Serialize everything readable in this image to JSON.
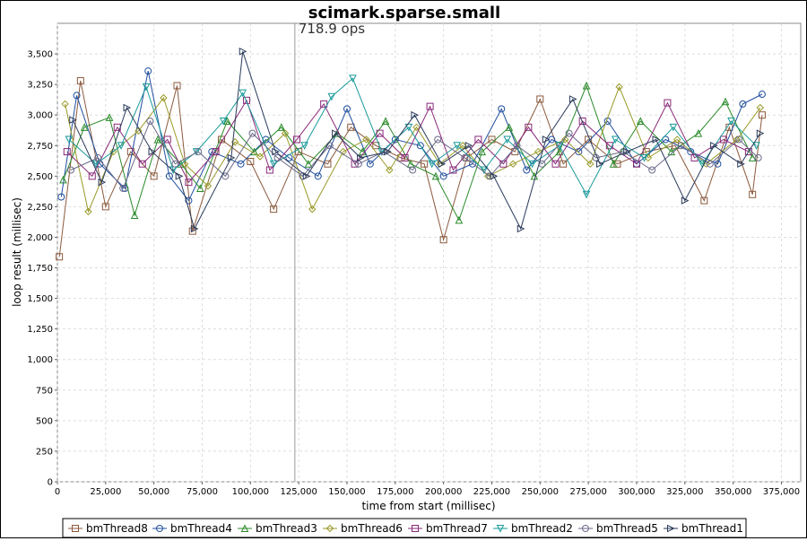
{
  "chart_data": {
    "type": "line",
    "title": "scimark.sparse.small",
    "annotation": "718.9 ops",
    "xlabel": "time from start (millisec)",
    "ylabel": "loop result (millisec)",
    "xlim": [
      0,
      385000
    ],
    "ylim": [
      0,
      3750
    ],
    "xticks": [
      0,
      25000,
      50000,
      75000,
      100000,
      125000,
      150000,
      175000,
      200000,
      225000,
      250000,
      275000,
      300000,
      325000,
      350000,
      375000
    ],
    "xtick_labels": [
      "0",
      "25,000",
      "50,000",
      "75,000",
      "100,000",
      "125,000",
      "150,000",
      "175,000",
      "200,000",
      "225,000",
      "250,000",
      "275,000",
      "300,000",
      "325,000",
      "350,000",
      "375,000"
    ],
    "yticks": [
      0,
      250,
      500,
      750,
      1000,
      1250,
      1500,
      1750,
      2000,
      2250,
      2500,
      2750,
      3000,
      3250,
      3500
    ],
    "ytick_labels": [
      "0",
      "250",
      "500",
      "750",
      "1,000",
      "1,250",
      "1,500",
      "1,750",
      "2,000",
      "2,250",
      "2,500",
      "2,750",
      "3,000",
      "3,250",
      "3,500"
    ],
    "marker_line_x": 123000,
    "grid": true,
    "legend_position": "bottom",
    "series": [
      {
        "name": "bmThread8",
        "color": "#8b5a3c",
        "marker": "square",
        "x": [
          1000,
          12000,
          25000,
          38000,
          50000,
          62000,
          70000,
          85000,
          100000,
          112000,
          125000,
          140000,
          152000,
          165000,
          178000,
          190000,
          200000,
          212000,
          225000,
          237000,
          250000,
          262000,
          275000,
          290000,
          305000,
          320000,
          335000,
          348000,
          360000,
          365000
        ],
        "y": [
          1840,
          3280,
          2250,
          2700,
          2500,
          3240,
          2050,
          2800,
          2620,
          2230,
          2700,
          2600,
          2900,
          2750,
          2650,
          2600,
          1980,
          2650,
          2800,
          2700,
          3130,
          2600,
          2800,
          2600,
          2700,
          2750,
          2300,
          2900,
          2350,
          3000
        ]
      },
      {
        "name": "bmThread4",
        "color": "#1f4e9c",
        "marker": "circle",
        "x": [
          2000,
          10000,
          22000,
          35000,
          47000,
          58000,
          68000,
          80000,
          95000,
          108000,
          120000,
          135000,
          150000,
          162000,
          175000,
          188000,
          200000,
          215000,
          230000,
          243000,
          256000,
          270000,
          285000,
          300000,
          315000,
          328000,
          342000,
          355000,
          365000
        ],
        "y": [
          2330,
          3160,
          2600,
          2400,
          3360,
          2500,
          2300,
          2700,
          2600,
          2800,
          2650,
          2500,
          3050,
          2600,
          2800,
          2750,
          2500,
          2600,
          3050,
          2550,
          2800,
          2700,
          2950,
          2600,
          2800,
          2700,
          2600,
          3090,
          3170
        ]
      },
      {
        "name": "bmThread3",
        "color": "#2a8a2a",
        "marker": "triangle-up",
        "x": [
          3000,
          14000,
          27000,
          40000,
          52000,
          64000,
          74000,
          88000,
          102000,
          116000,
          130000,
          145000,
          158000,
          170000,
          183000,
          196000,
          208000,
          220000,
          234000,
          247000,
          260000,
          274000,
          288000,
          302000,
          318000,
          332000,
          346000,
          360000
        ],
        "y": [
          2470,
          2900,
          2980,
          2180,
          2800,
          2600,
          2400,
          2950,
          2700,
          2900,
          2600,
          2850,
          2700,
          2950,
          2600,
          2500,
          2140,
          2700,
          2900,
          2500,
          2700,
          3240,
          2600,
          2950,
          2700,
          2850,
          3110,
          2650
        ]
      },
      {
        "name": "bmThread6",
        "color": "#9a9a2a",
        "marker": "diamond",
        "x": [
          4000,
          16000,
          29000,
          42000,
          55000,
          66000,
          78000,
          92000,
          105000,
          118000,
          132000,
          148000,
          160000,
          172000,
          186000,
          198000,
          210000,
          223000,
          236000,
          249000,
          263000,
          276000,
          291000,
          306000,
          321000,
          336000,
          352000,
          364000
        ],
        "y": [
          3090,
          2210,
          2700,
          2870,
          3140,
          2600,
          2420,
          2780,
          2660,
          2850,
          2230,
          2700,
          2800,
          2550,
          2900,
          2600,
          2750,
          2500,
          2600,
          2700,
          2800,
          2600,
          3230,
          2650,
          2800,
          2600,
          2800,
          3060
        ]
      },
      {
        "name": "bmThread7",
        "color": "#8a2a7a",
        "marker": "square",
        "x": [
          5000,
          18000,
          31000,
          44000,
          57000,
          68000,
          82000,
          98000,
          110000,
          124000,
          138000,
          154000,
          167000,
          180000,
          193000,
          205000,
          218000,
          231000,
          244000,
          258000,
          272000,
          286000,
          300000,
          316000,
          330000,
          345000,
          358000
        ],
        "y": [
          2700,
          2500,
          2900,
          2600,
          2800,
          2450,
          2700,
          3120,
          2550,
          2800,
          3090,
          2600,
          2850,
          2650,
          3070,
          2550,
          2800,
          2600,
          2900,
          2600,
          2950,
          2750,
          2600,
          3100,
          2650,
          2800,
          2700
        ]
      },
      {
        "name": "bmThread2",
        "color": "#1a9a9a",
        "marker": "triangle-down",
        "x": [
          6000,
          20000,
          33000,
          46000,
          60000,
          72000,
          86000,
          96000,
          112000,
          128000,
          142000,
          153000,
          168000,
          182000,
          194000,
          207000,
          221000,
          233000,
          246000,
          260000,
          274000,
          289000,
          304000,
          319000,
          334000,
          349000,
          362000
        ],
        "y": [
          2800,
          2600,
          2750,
          3230,
          2550,
          2700,
          2950,
          3180,
          2600,
          2750,
          3150,
          3300,
          2700,
          2900,
          2600,
          2750,
          2550,
          2800,
          2600,
          2750,
          2350,
          2800,
          2650,
          2900,
          2600,
          2950,
          2750
        ]
      },
      {
        "name": "bmThread5",
        "color": "#6a6a8a",
        "marker": "circle",
        "x": [
          7000,
          21000,
          34000,
          48000,
          61000,
          73000,
          87000,
          101000,
          114000,
          127000,
          141000,
          156000,
          169000,
          184000,
          197000,
          211000,
          224000,
          238000,
          251000,
          265000,
          279000,
          293000,
          308000,
          323000,
          338000,
          353000,
          363000
        ],
        "y": [
          2550,
          2650,
          2400,
          2950,
          2600,
          2700,
          2500,
          2850,
          2650,
          2500,
          2750,
          2600,
          2700,
          2550,
          2800,
          2650,
          2500,
          2750,
          2600,
          2850,
          2650,
          2700,
          2550,
          2750,
          2600,
          2800,
          2650
        ]
      },
      {
        "name": "bmThread1",
        "color": "#2a3a5a",
        "marker": "triangle-right",
        "x": [
          8000,
          23000,
          36000,
          49000,
          63000,
          71000,
          90000,
          96000,
          113000,
          129000,
          144000,
          157000,
          171000,
          185000,
          199000,
          213000,
          226000,
          240000,
          253000,
          267000,
          281000,
          295000,
          310000,
          325000,
          340000,
          354000,
          364000
        ],
        "y": [
          2960,
          2450,
          3060,
          2700,
          2500,
          2070,
          2650,
          3520,
          2700,
          2500,
          2850,
          2650,
          2700,
          3000,
          2600,
          2750,
          2500,
          2070,
          2800,
          3130,
          2600,
          2700,
          2800,
          2300,
          2750,
          2600,
          2850
        ]
      }
    ]
  }
}
